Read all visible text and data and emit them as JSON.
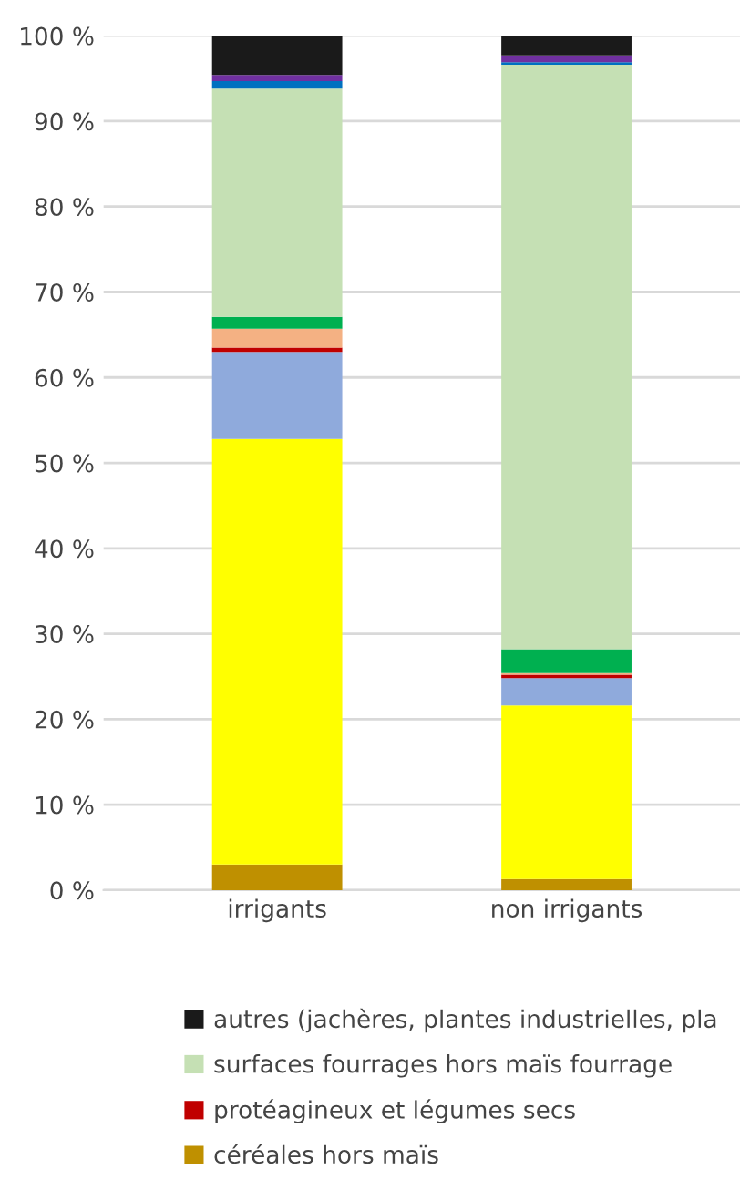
{
  "chart_data": {
    "type": "bar",
    "stacked": true,
    "categories": [
      "irrigants",
      "non irrigants"
    ],
    "series": [
      {
        "name": "céréales hors maïs",
        "color": "#bf9000",
        "values": [
          3.0,
          1.3
        ]
      },
      {
        "color": "#ffff00",
        "values": [
          49.8,
          20.3
        ]
      },
      {
        "color": "#8faadc",
        "values": [
          10.2,
          3.2
        ]
      },
      {
        "name": "protéagineux et légumes secs",
        "color": "#c00000",
        "values": [
          0.5,
          0.4
        ]
      },
      {
        "color": "#f4b183",
        "values": [
          2.2,
          0.2
        ]
      },
      {
        "color": "#00b050",
        "values": [
          1.4,
          2.8
        ]
      },
      {
        "name": "surfaces fourrages hors maïs fourrage",
        "color": "#c5e0b4",
        "values": [
          26.7,
          68.4
        ]
      },
      {
        "color": "#0070c0",
        "values": [
          0.9,
          0.3
        ]
      },
      {
        "color": "#7030a0",
        "values": [
          0.7,
          0.8
        ]
      },
      {
        "name": "autres (jachères, plantes industrielles, pla",
        "color": "#1a1a1a",
        "values": [
          4.6,
          2.3
        ]
      }
    ],
    "ylim": [
      0,
      100
    ],
    "yticks": [
      {
        "value": 0,
        "label": "0 %"
      },
      {
        "value": 10,
        "label": "10 %"
      },
      {
        "value": 20,
        "label": "20 %"
      },
      {
        "value": 30,
        "label": "30 %"
      },
      {
        "value": 40,
        "label": "40 %"
      },
      {
        "value": 50,
        "label": "50 %"
      },
      {
        "value": 60,
        "label": "60 %"
      },
      {
        "value": 70,
        "label": "70 %"
      },
      {
        "value": 80,
        "label": "80 %"
      },
      {
        "value": 90,
        "label": "90 %"
      },
      {
        "value": 100,
        "label": "100 %"
      }
    ],
    "grid": "y",
    "legend": "bottom"
  }
}
